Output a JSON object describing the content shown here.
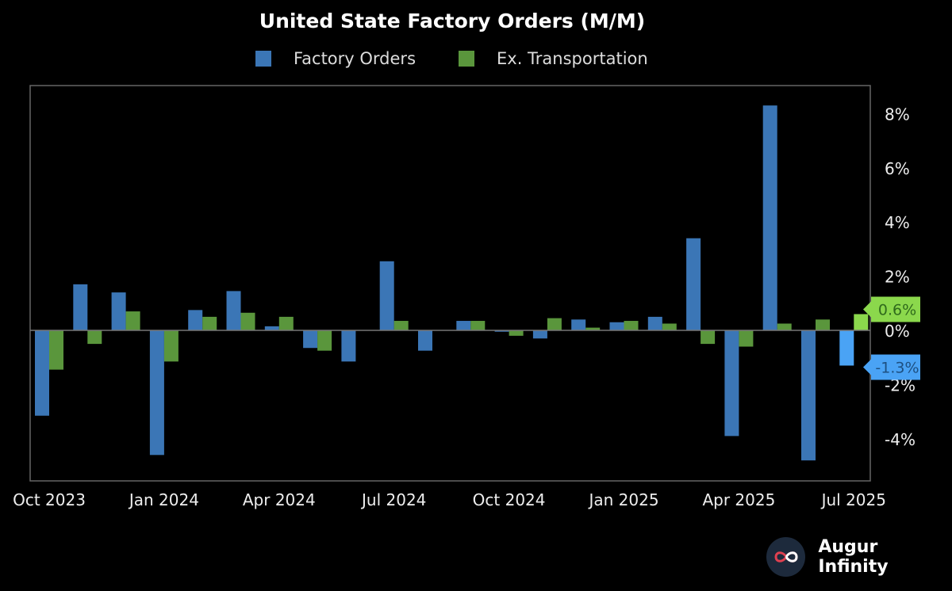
{
  "chart_data": {
    "type": "bar",
    "title": "United State Factory Orders (M/M)",
    "categories": [
      "Oct 2023",
      "Nov 2023",
      "Dec 2023",
      "Jan 2024",
      "Feb 2024",
      "Mar 2024",
      "Apr 2024",
      "May 2024",
      "Jun 2024",
      "Jul 2024",
      "Aug 2024",
      "Sep 2024",
      "Oct 2024",
      "Nov 2024",
      "Dec 2024",
      "Jan 2025",
      "Feb 2025",
      "Mar 2025",
      "Apr 2025",
      "May 2025",
      "Jun 2025",
      "Jul 2025"
    ],
    "x_tick_labels": [
      "Oct 2023",
      "Jan 2024",
      "Apr 2024",
      "Jul 2024",
      "Oct 2024",
      "Jan 2025",
      "Apr 2025",
      "Jul 2025"
    ],
    "y_tick_labels": [
      "8%",
      "6%",
      "4%",
      "2%",
      "0%",
      "-2%",
      "-4%"
    ],
    "y_ticks": [
      8,
      6,
      4,
      2,
      0,
      -2,
      -4
    ],
    "ylim": [
      -5.6,
      9.0
    ],
    "y_axis_position": "right",
    "grid": false,
    "legend_placement": "top",
    "series": [
      {
        "name": "Factory Orders",
        "color": "#3b76b6",
        "highlight_color": "#4aa3f5",
        "values": [
          -3.15,
          1.7,
          1.4,
          -4.6,
          0.75,
          1.45,
          0.15,
          -0.65,
          -1.15,
          2.55,
          -0.75,
          0.35,
          -0.05,
          -0.3,
          0.4,
          0.3,
          0.5,
          3.4,
          -3.9,
          8.3,
          -4.8,
          -1.3
        ]
      },
      {
        "name": "Ex. Transportation",
        "color": "#5a963c",
        "highlight_color": "#8bd84c",
        "values": [
          -1.45,
          -0.5,
          0.7,
          -1.15,
          0.5,
          0.65,
          0.5,
          -0.75,
          0,
          0.35,
          0,
          0.35,
          -0.2,
          0.45,
          0.1,
          0.35,
          0.25,
          -0.5,
          -0.6,
          0.25,
          0.4,
          0.6
        ]
      }
    ],
    "annotations": [
      {
        "series": "Ex. Transportation",
        "label": "0.6%"
      },
      {
        "series": "Factory Orders",
        "label": "-1.3%"
      }
    ]
  },
  "brand": {
    "name": "Augur Infinity",
    "icon": "infinity-icon"
  }
}
